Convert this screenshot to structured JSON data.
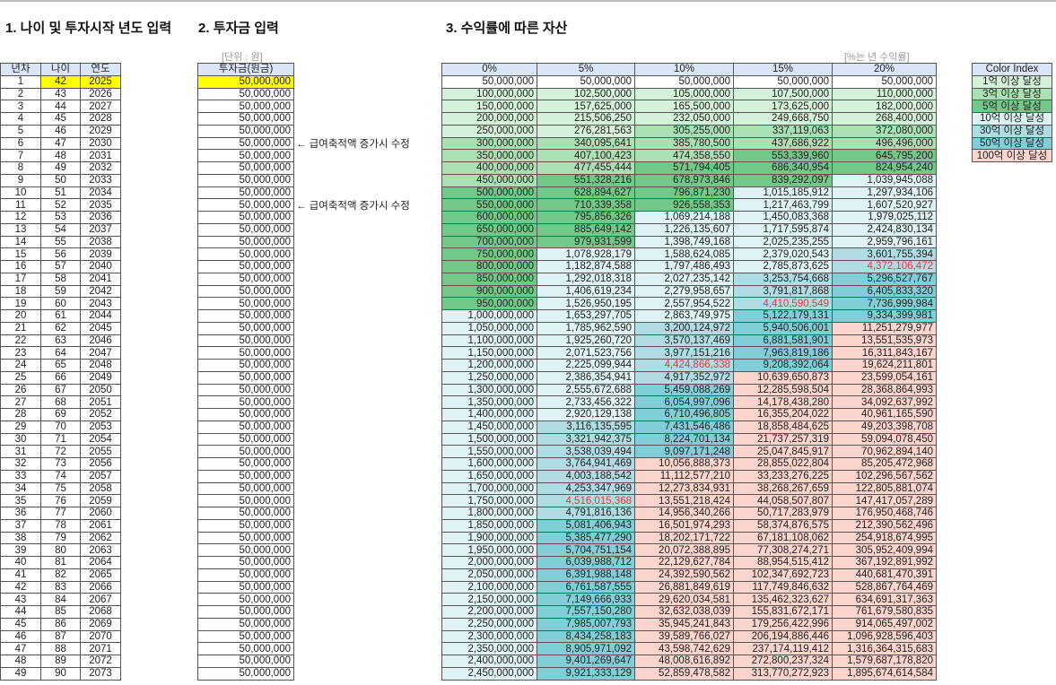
{
  "titles": {
    "section1": "1. 나이 및 투자시작 년도 입력",
    "section2": "2. 투자금 입력",
    "section3": "3. 수익률에 따른 자산"
  },
  "units": {
    "won": "[단위 : 원]",
    "rate": "[%는 년 수익률]"
  },
  "left_headers": [
    "년차",
    "나이",
    "연도"
  ],
  "invest_header": "투자금(원금)",
  "rate_headers": [
    "0%",
    "5%",
    "10%",
    "15%",
    "20%"
  ],
  "annotations": [
    {
      "row": 6,
      "text": "← 급여축적액 증가시 수정"
    },
    {
      "row": 11,
      "text": "← 급여축적액 증가시 수정"
    }
  ],
  "red_cells": [
    [
      35,
      1
    ],
    [
      24,
      2
    ],
    [
      19,
      3
    ],
    [
      16,
      4
    ]
  ],
  "color_index": {
    "title": "Color Index",
    "items": [
      "1억 이상 달성",
      "3억 이상 달성",
      "5억 이상 달성",
      "10억 이상 달성",
      "30억 이상 달성",
      "50억 이상 달성",
      "100억 이상 달성"
    ],
    "colors": [
      "#d6f1d9",
      "#a9e1b2",
      "#72c886",
      "#dff2f5",
      "#b0dde4",
      "#80cfd8",
      "#fad4cd"
    ]
  },
  "highlight_color": "#ffff00",
  "rows": [
    [
      "1",
      "42",
      "2025",
      "50,000,000",
      [
        "50,000,000",
        "50,000,000",
        "50,000,000",
        "50,000,000",
        "50,000,000"
      ]
    ],
    [
      "2",
      "43",
      "2026",
      "50,000,000",
      [
        "100,000,000",
        "102,500,000",
        "105,000,000",
        "107,500,000",
        "110,000,000"
      ]
    ],
    [
      "3",
      "44",
      "2027",
      "50,000,000",
      [
        "150,000,000",
        "157,625,000",
        "165,500,000",
        "173,625,000",
        "182,000,000"
      ]
    ],
    [
      "4",
      "45",
      "2028",
      "50,000,000",
      [
        "200,000,000",
        "215,506,250",
        "232,050,000",
        "249,668,750",
        "268,400,000"
      ]
    ],
    [
      "5",
      "46",
      "2029",
      "50,000,000",
      [
        "250,000,000",
        "276,281,563",
        "305,255,000",
        "337,119,063",
        "372,080,000"
      ]
    ],
    [
      "6",
      "47",
      "2030",
      "50,000,000",
      [
        "300,000,000",
        "340,095,641",
        "385,780,500",
        "437,686,922",
        "496,496,000"
      ]
    ],
    [
      "7",
      "48",
      "2031",
      "50,000,000",
      [
        "350,000,000",
        "407,100,423",
        "474,358,550",
        "553,339,960",
        "645,795,200"
      ]
    ],
    [
      "8",
      "49",
      "2032",
      "50,000,000",
      [
        "400,000,000",
        "477,455,444",
        "571,794,405",
        "686,340,954",
        "824,954,240"
      ]
    ],
    [
      "9",
      "50",
      "2033",
      "50,000,000",
      [
        "450,000,000",
        "551,328,216",
        "678,973,846",
        "839,292,097",
        "1,039,945,088"
      ]
    ],
    [
      "10",
      "51",
      "2034",
      "50,000,000",
      [
        "500,000,000",
        "628,894,627",
        "796,871,230",
        "1,015,185,912",
        "1,297,934,106"
      ]
    ],
    [
      "11",
      "52",
      "2035",
      "50,000,000",
      [
        "550,000,000",
        "710,339,358",
        "926,558,353",
        "1,217,463,799",
        "1,607,520,927"
      ]
    ],
    [
      "12",
      "53",
      "2036",
      "50,000,000",
      [
        "600,000,000",
        "795,856,326",
        "1,069,214,188",
        "1,450,083,368",
        "1,979,025,112"
      ]
    ],
    [
      "13",
      "54",
      "2037",
      "50,000,000",
      [
        "650,000,000",
        "885,649,142",
        "1,226,135,607",
        "1,717,595,874",
        "2,424,830,134"
      ]
    ],
    [
      "14",
      "55",
      "2038",
      "50,000,000",
      [
        "700,000,000",
        "979,931,599",
        "1,398,749,168",
        "2,025,235,255",
        "2,959,796,161"
      ]
    ],
    [
      "15",
      "56",
      "2039",
      "50,000,000",
      [
        "750,000,000",
        "1,078,928,179",
        "1,588,624,085",
        "2,379,020,543",
        "3,601,755,394"
      ]
    ],
    [
      "16",
      "57",
      "2040",
      "50,000,000",
      [
        "800,000,000",
        "1,182,874,588",
        "1,797,486,493",
        "2,785,873,625",
        "4,372,106,472"
      ]
    ],
    [
      "17",
      "58",
      "2041",
      "50,000,000",
      [
        "850,000,000",
        "1,292,018,318",
        "2,027,235,142",
        "3,253,754,668",
        "5,296,527,767"
      ]
    ],
    [
      "18",
      "59",
      "2042",
      "50,000,000",
      [
        "900,000,000",
        "1,406,619,234",
        "2,279,958,657",
        "3,791,817,868",
        "6,405,833,320"
      ]
    ],
    [
      "19",
      "60",
      "2043",
      "50,000,000",
      [
        "950,000,000",
        "1,526,950,195",
        "2,557,954,522",
        "4,410,590,549",
        "7,736,999,984"
      ]
    ],
    [
      "20",
      "61",
      "2044",
      "50,000,000",
      [
        "1,000,000,000",
        "1,653,297,705",
        "2,863,749,975",
        "5,122,179,131",
        "9,334,399,981"
      ]
    ],
    [
      "21",
      "62",
      "2045",
      "50,000,000",
      [
        "1,050,000,000",
        "1,785,962,590",
        "3,200,124,972",
        "5,940,506,001",
        "11,251,279,977"
      ]
    ],
    [
      "22",
      "63",
      "2046",
      "50,000,000",
      [
        "1,100,000,000",
        "1,925,260,720",
        "3,570,137,469",
        "6,881,581,901",
        "13,551,535,973"
      ]
    ],
    [
      "23",
      "64",
      "2047",
      "50,000,000",
      [
        "1,150,000,000",
        "2,071,523,756",
        "3,977,151,216",
        "7,963,819,186",
        "16,311,843,167"
      ]
    ],
    [
      "24",
      "65",
      "2048",
      "50,000,000",
      [
        "1,200,000,000",
        "2,225,099,944",
        "4,424,866,338",
        "9,208,392,064",
        "19,624,211,801"
      ]
    ],
    [
      "25",
      "66",
      "2049",
      "50,000,000",
      [
        "1,250,000,000",
        "2,386,354,941",
        "4,917,352,972",
        "10,639,650,873",
        "23,599,054,161"
      ]
    ],
    [
      "26",
      "67",
      "2050",
      "50,000,000",
      [
        "1,300,000,000",
        "2,555,672,688",
        "5,459,088,269",
        "12,285,598,504",
        "28,368,864,993"
      ]
    ],
    [
      "27",
      "68",
      "2051",
      "50,000,000",
      [
        "1,350,000,000",
        "2,733,456,322",
        "6,054,997,096",
        "14,178,438,280",
        "34,092,637,992"
      ]
    ],
    [
      "28",
      "69",
      "2052",
      "50,000,000",
      [
        "1,400,000,000",
        "2,920,129,138",
        "6,710,496,805",
        "16,355,204,022",
        "40,961,165,590"
      ]
    ],
    [
      "29",
      "70",
      "2053",
      "50,000,000",
      [
        "1,450,000,000",
        "3,116,135,595",
        "7,431,546,486",
        "18,858,484,625",
        "49,203,398,708"
      ]
    ],
    [
      "30",
      "71",
      "2054",
      "50,000,000",
      [
        "1,500,000,000",
        "3,321,942,375",
        "8,224,701,134",
        "21,737,257,319",
        "59,094,078,450"
      ]
    ],
    [
      "31",
      "72",
      "2055",
      "50,000,000",
      [
        "1,550,000,000",
        "3,538,039,494",
        "9,097,171,248",
        "25,047,845,917",
        "70,962,894,140"
      ]
    ],
    [
      "32",
      "73",
      "2056",
      "50,000,000",
      [
        "1,600,000,000",
        "3,764,941,469",
        "10,056,888,373",
        "28,855,022,804",
        "85,205,472,968"
      ]
    ],
    [
      "33",
      "74",
      "2057",
      "50,000,000",
      [
        "1,650,000,000",
        "4,003,188,542",
        "11,112,577,210",
        "33,233,276,225",
        "102,296,567,562"
      ]
    ],
    [
      "34",
      "75",
      "2058",
      "50,000,000",
      [
        "1,700,000,000",
        "4,253,347,969",
        "12,273,834,931",
        "38,268,267,659",
        "122,805,881,074"
      ]
    ],
    [
      "35",
      "76",
      "2059",
      "50,000,000",
      [
        "1,750,000,000",
        "4,516,015,368",
        "13,551,218,424",
        "44,058,507,807",
        "147,417,057,289"
      ]
    ],
    [
      "36",
      "77",
      "2060",
      "50,000,000",
      [
        "1,800,000,000",
        "4,791,816,136",
        "14,956,340,266",
        "50,717,283,979",
        "176,950,468,746"
      ]
    ],
    [
      "37",
      "78",
      "2061",
      "50,000,000",
      [
        "1,850,000,000",
        "5,081,406,943",
        "16,501,974,293",
        "58,374,876,575",
        "212,390,562,496"
      ]
    ],
    [
      "38",
      "79",
      "2062",
      "50,000,000",
      [
        "1,900,000,000",
        "5,385,477,290",
        "18,202,171,722",
        "67,181,108,062",
        "254,918,674,995"
      ]
    ],
    [
      "39",
      "80",
      "2063",
      "50,000,000",
      [
        "1,950,000,000",
        "5,704,751,154",
        "20,072,388,895",
        "77,308,274,271",
        "305,952,409,994"
      ]
    ],
    [
      "40",
      "81",
      "2064",
      "50,000,000",
      [
        "2,000,000,000",
        "6,039,988,712",
        "22,129,627,784",
        "88,954,515,412",
        "367,192,891,992"
      ]
    ],
    [
      "41",
      "82",
      "2065",
      "50,000,000",
      [
        "2,050,000,000",
        "6,391,988,148",
        "24,392,590,562",
        "102,347,692,723",
        "440,681,470,391"
      ]
    ],
    [
      "42",
      "83",
      "2066",
      "50,000,000",
      [
        "2,100,000,000",
        "6,761,587,555",
        "26,881,849,619",
        "117,749,846,632",
        "528,867,764,469"
      ]
    ],
    [
      "43",
      "84",
      "2067",
      "50,000,000",
      [
        "2,150,000,000",
        "7,149,666,933",
        "29,620,034,581",
        "135,462,323,627",
        "634,691,317,363"
      ]
    ],
    [
      "44",
      "85",
      "2068",
      "50,000,000",
      [
        "2,200,000,000",
        "7,557,150,280",
        "32,632,038,039",
        "155,831,672,171",
        "761,679,580,835"
      ]
    ],
    [
      "45",
      "86",
      "2069",
      "50,000,000",
      [
        "2,250,000,000",
        "7,985,007,793",
        "35,945,241,843",
        "179,256,422,996",
        "914,065,497,002"
      ]
    ],
    [
      "46",
      "87",
      "2070",
      "50,000,000",
      [
        "2,300,000,000",
        "8,434,258,183",
        "39,589,766,027",
        "206,194,886,446",
        "1,096,928,596,403"
      ]
    ],
    [
      "47",
      "88",
      "2071",
      "50,000,000",
      [
        "2,350,000,000",
        "8,905,971,092",
        "43,598,742,629",
        "237,174,119,412",
        "1,316,364,315,683"
      ]
    ],
    [
      "48",
      "89",
      "2072",
      "50,000,000",
      [
        "2,400,000,000",
        "9,401,269,647",
        "48,008,616,892",
        "272,800,237,324",
        "1,579,687,178,820"
      ]
    ],
    [
      "49",
      "90",
      "2073",
      "50,000,000",
      [
        "2,450,000,000",
        "9,921,333,129",
        "52,859,478,582",
        "313,770,272,923",
        "1,895,674,614,584"
      ]
    ]
  ]
}
